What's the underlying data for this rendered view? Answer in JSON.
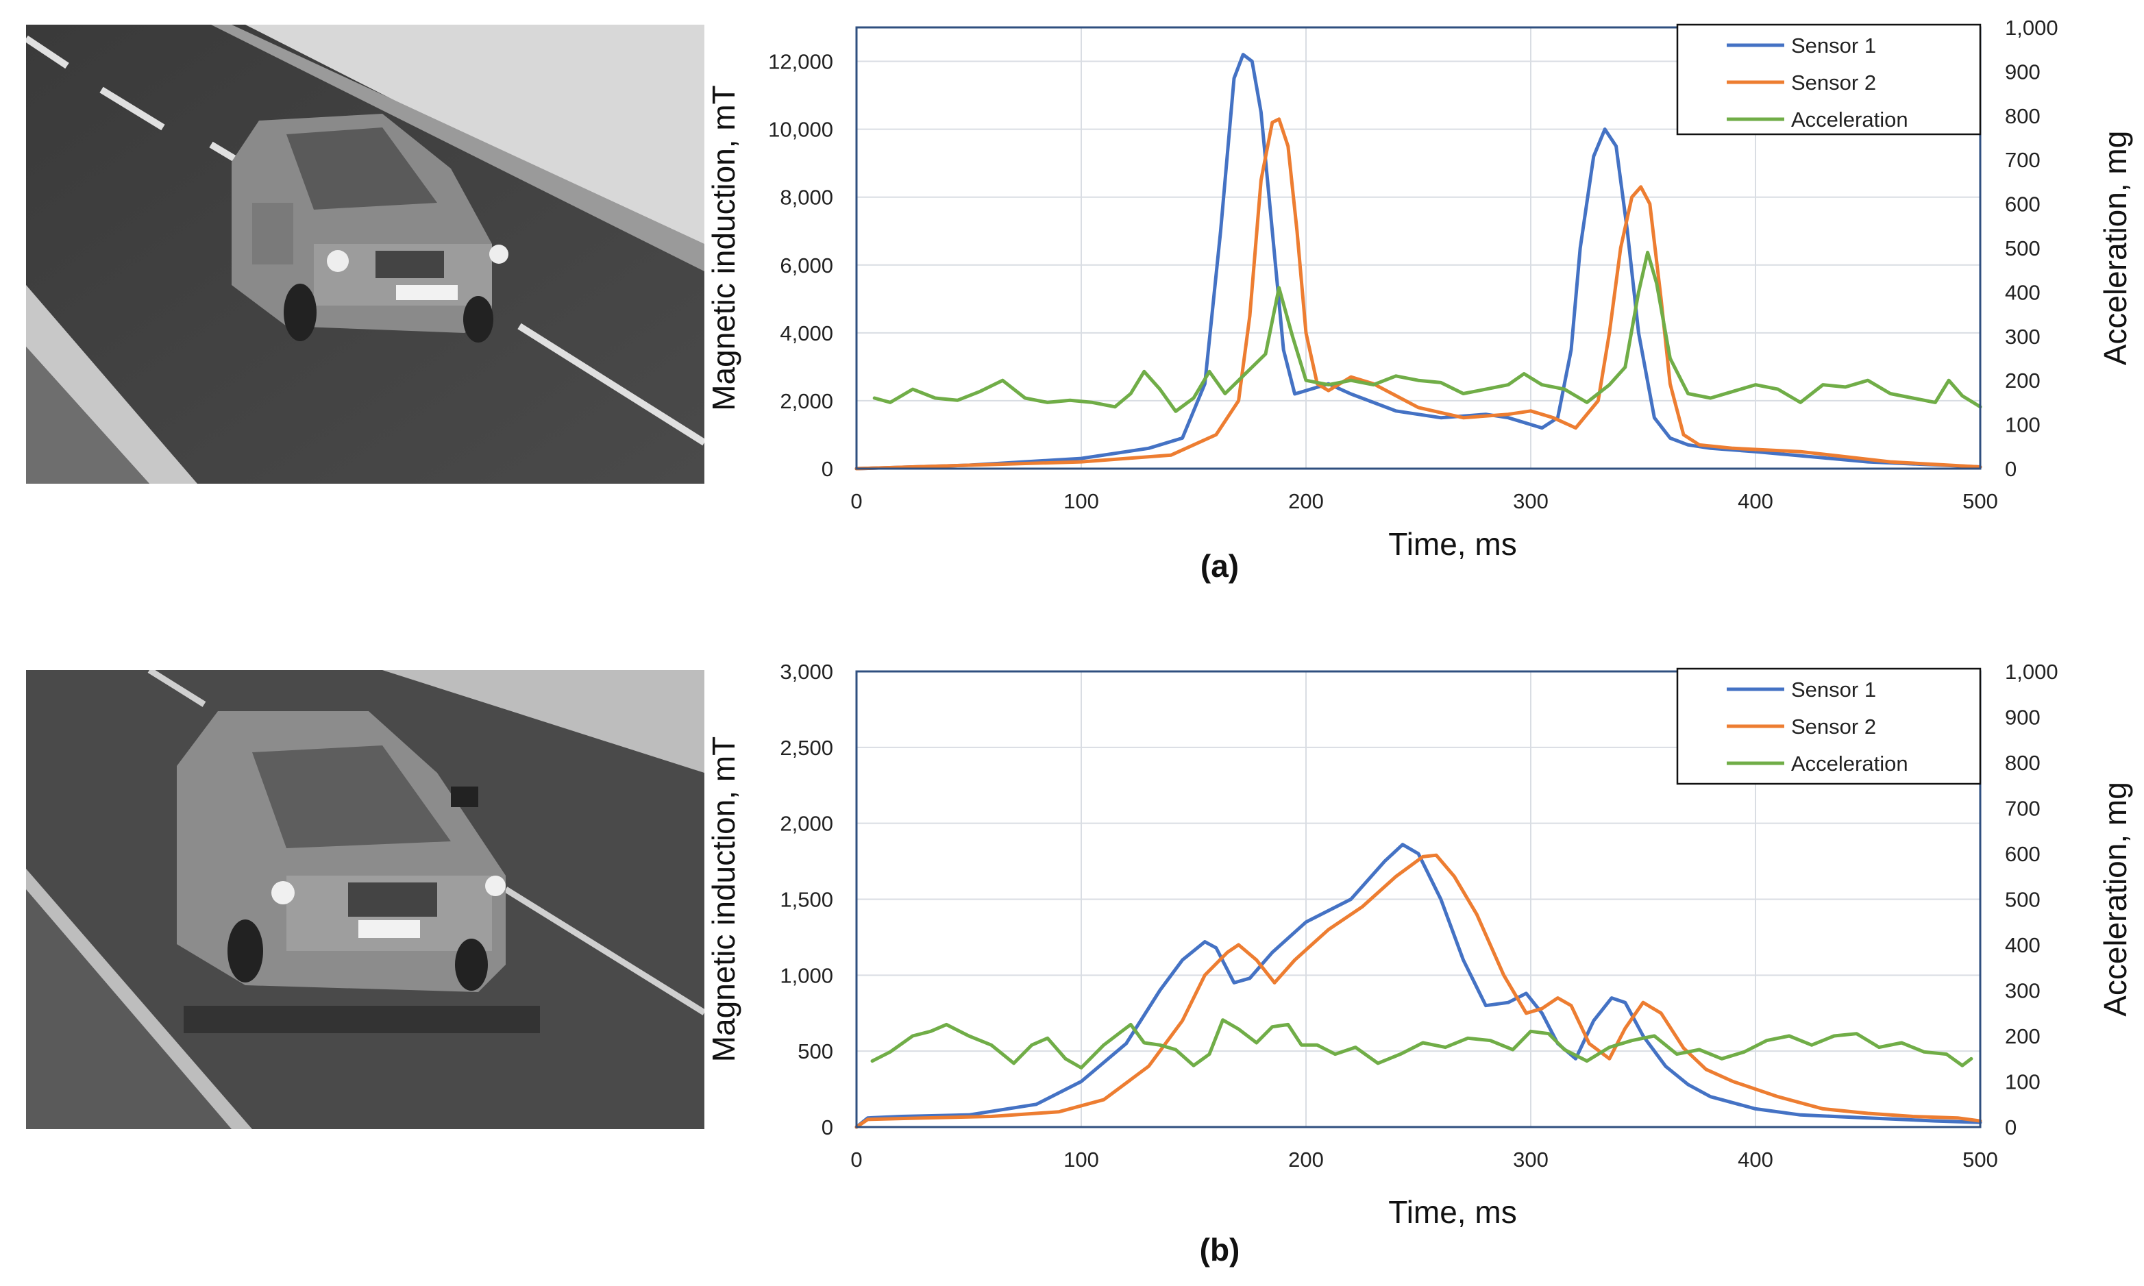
{
  "figure": {
    "description_labels": [
      "(a)",
      "(b)"
    ]
  },
  "colors": {
    "sensor1": "#4472c4",
    "sensor2": "#ed7d31",
    "acceleration": "#70ad47",
    "grid": "#d9dde3",
    "frame": "#2f4f7f"
  },
  "chart_data": [
    {
      "type": "line",
      "panel_label": "(a)",
      "xlabel": "Time, ms",
      "ylabel": "Magnetic induction, mT",
      "y2label": "Acceleration, mg",
      "xlim": [
        0,
        500
      ],
      "ylim": [
        0,
        13000
      ],
      "y2lim": [
        0,
        1000
      ],
      "x_ticks": [
        "0",
        "100",
        "200",
        "300",
        "400",
        "500"
      ],
      "y_ticks": [
        "0",
        "2,000",
        "4,000",
        "6,000",
        "8,000",
        "10,000",
        "12,000"
      ],
      "y_tick_values": [
        0,
        2000,
        4000,
        6000,
        8000,
        10000,
        12000
      ],
      "y2_ticks": [
        "0",
        "100",
        "200",
        "300",
        "400",
        "500",
        "600",
        "700",
        "800",
        "900",
        "1,000"
      ],
      "legend": [
        "Sensor 1",
        "Sensor 2",
        "Acceleration"
      ],
      "series": [
        {
          "name": "Sensor 1",
          "axis": "left",
          "x": [
            0,
            50,
            100,
            130,
            145,
            155,
            162,
            168,
            172,
            176,
            180,
            185,
            190,
            195,
            200,
            210,
            220,
            240,
            260,
            280,
            290,
            300,
            305,
            312,
            318,
            322,
            328,
            333,
            338,
            343,
            348,
            355,
            362,
            370,
            380,
            400,
            450,
            500
          ],
          "y": [
            0,
            100,
            300,
            600,
            900,
            2500,
            7000,
            11500,
            12200,
            12000,
            10500,
            7000,
            3500,
            2200,
            2300,
            2500,
            2200,
            1700,
            1500,
            1600,
            1500,
            1300,
            1200,
            1500,
            3500,
            6500,
            9200,
            10000,
            9500,
            7000,
            4000,
            1500,
            900,
            700,
            600,
            500,
            200,
            50
          ]
        },
        {
          "name": "Sensor 2",
          "axis": "left",
          "x": [
            0,
            50,
            100,
            140,
            160,
            170,
            175,
            180,
            185,
            188,
            192,
            196,
            200,
            205,
            210,
            220,
            230,
            250,
            270,
            290,
            300,
            310,
            320,
            330,
            335,
            340,
            345,
            349,
            353,
            358,
            362,
            368,
            375,
            390,
            420,
            460,
            500
          ],
          "y": [
            0,
            100,
            200,
            400,
            1000,
            2000,
            4500,
            8500,
            10200,
            10300,
            9500,
            7000,
            4000,
            2500,
            2300,
            2700,
            2500,
            1800,
            1500,
            1600,
            1700,
            1500,
            1200,
            2000,
            4000,
            6500,
            8000,
            8300,
            7800,
            5000,
            2500,
            1000,
            700,
            600,
            500,
            200,
            50
          ]
        },
        {
          "name": "Acceleration",
          "axis": "right",
          "x": [
            8,
            15,
            25,
            35,
            45,
            55,
            65,
            75,
            85,
            95,
            105,
            115,
            122,
            128,
            135,
            142,
            150,
            157,
            164,
            170,
            176,
            182,
            188,
            194,
            200,
            210,
            220,
            230,
            240,
            250,
            260,
            270,
            280,
            290,
            297,
            305,
            315,
            325,
            335,
            342,
            348,
            352,
            356,
            362,
            370,
            380,
            390,
            400,
            410,
            420,
            430,
            440,
            450,
            460,
            470,
            480,
            486,
            492,
            500
          ],
          "y": [
            160,
            150,
            180,
            160,
            155,
            175,
            200,
            160,
            150,
            155,
            150,
            140,
            170,
            220,
            180,
            130,
            160,
            220,
            170,
            200,
            230,
            260,
            410,
            300,
            200,
            190,
            200,
            190,
            210,
            200,
            195,
            170,
            180,
            190,
            215,
            190,
            180,
            150,
            190,
            230,
            400,
            490,
            420,
            250,
            170,
            160,
            175,
            190,
            180,
            150,
            190,
            185,
            200,
            170,
            160,
            150,
            200,
            165,
            140
          ]
        }
      ]
    },
    {
      "type": "line",
      "panel_label": "(b)",
      "xlabel": "Time, ms",
      "ylabel": "Magnetic induction, mT",
      "y2label": "Acceleration, mg",
      "xlim": [
        0,
        500
      ],
      "ylim": [
        0,
        3000
      ],
      "y2lim": [
        0,
        1000
      ],
      "x_ticks": [
        "0",
        "100",
        "200",
        "300",
        "400",
        "500"
      ],
      "y_ticks": [
        "0",
        "500",
        "1,000",
        "1,500",
        "2,000",
        "2,500",
        "3,000"
      ],
      "y_tick_values": [
        0,
        500,
        1000,
        1500,
        2000,
        2500,
        3000
      ],
      "y2_ticks": [
        "0",
        "100",
        "200",
        "300",
        "400",
        "500",
        "600",
        "700",
        "800",
        "900",
        "1,000"
      ],
      "legend": [
        "Sensor 1",
        "Sensor 2",
        "Acceleration"
      ],
      "series": [
        {
          "name": "Sensor 1",
          "axis": "left",
          "x": [
            0,
            5,
            20,
            50,
            80,
            100,
            120,
            135,
            145,
            155,
            160,
            168,
            175,
            185,
            200,
            220,
            235,
            243,
            250,
            260,
            270,
            280,
            290,
            298,
            305,
            312,
            320,
            328,
            336,
            342,
            350,
            360,
            370,
            380,
            400,
            420,
            450,
            480,
            500
          ],
          "y": [
            0,
            60,
            70,
            80,
            150,
            300,
            550,
            900,
            1100,
            1220,
            1180,
            950,
            980,
            1150,
            1350,
            1500,
            1750,
            1860,
            1800,
            1500,
            1100,
            800,
            820,
            880,
            750,
            550,
            450,
            700,
            850,
            820,
            600,
            400,
            280,
            200,
            120,
            80,
            60,
            40,
            30
          ]
        },
        {
          "name": "Sensor 2",
          "axis": "left",
          "x": [
            0,
            5,
            30,
            60,
            90,
            110,
            130,
            145,
            155,
            165,
            170,
            178,
            186,
            195,
            210,
            225,
            240,
            252,
            258,
            266,
            276,
            288,
            298,
            305,
            312,
            318,
            326,
            335,
            342,
            350,
            358,
            368,
            378,
            390,
            410,
            430,
            450,
            470,
            490,
            500
          ],
          "y": [
            0,
            50,
            60,
            70,
            100,
            180,
            400,
            700,
            1000,
            1150,
            1200,
            1100,
            950,
            1100,
            1300,
            1450,
            1650,
            1780,
            1790,
            1650,
            1400,
            1000,
            750,
            780,
            850,
            800,
            550,
            450,
            650,
            820,
            750,
            520,
            380,
            300,
            200,
            120,
            90,
            70,
            60,
            40
          ]
        },
        {
          "name": "Acceleration",
          "axis": "right",
          "x": [
            7,
            15,
            25,
            33,
            40,
            50,
            60,
            70,
            78,
            85,
            93,
            100,
            110,
            118,
            122,
            128,
            135,
            142,
            150,
            157,
            163,
            170,
            178,
            185,
            192,
            198,
            205,
            213,
            222,
            232,
            242,
            252,
            262,
            272,
            282,
            292,
            300,
            308,
            315,
            325,
            335,
            345,
            355,
            365,
            375,
            385,
            395,
            405,
            415,
            425,
            435,
            445,
            455,
            465,
            475,
            485,
            492,
            496
          ],
          "y": [
            145,
            165,
            200,
            210,
            225,
            200,
            180,
            140,
            180,
            195,
            150,
            130,
            180,
            210,
            225,
            185,
            180,
            170,
            135,
            160,
            235,
            215,
            185,
            220,
            225,
            180,
            180,
            160,
            175,
            140,
            160,
            185,
            175,
            195,
            190,
            170,
            210,
            205,
            170,
            145,
            175,
            190,
            200,
            160,
            170,
            150,
            165,
            190,
            200,
            180,
            200,
            205,
            175,
            185,
            165,
            160,
            135,
            150
          ]
        }
      ]
    }
  ]
}
